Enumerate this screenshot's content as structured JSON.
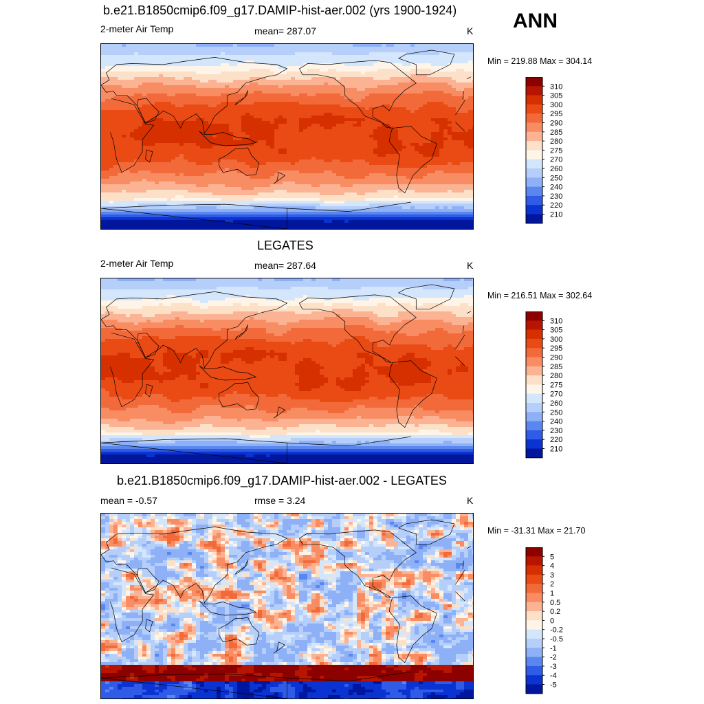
{
  "season": "ANN",
  "panels": [
    {
      "title": "b.e21.B1850cmip6.f09_g17.DAMIP-hist-aer.002 (yrs 1900-1924)",
      "left_label": "2-meter Air Temp",
      "center_label": "mean= 287.07",
      "units": "K",
      "minmax": "Min = 219.88 Max = 304.14",
      "kind": "temp",
      "legend_labels": [
        "310",
        "305",
        "300",
        "295",
        "290",
        "285",
        "280",
        "275",
        "270",
        "260",
        "250",
        "240",
        "230",
        "220",
        "210"
      ],
      "legend_colors": [
        "#8c0000",
        "#b81500",
        "#d63000",
        "#ea4a14",
        "#f26a3a",
        "#f88c62",
        "#fbb394",
        "#fde0c8",
        "#fff4e8",
        "#d4e6fb",
        "#b6cffa",
        "#8db0f6",
        "#5a87ef",
        "#2f5be6",
        "#0a33d2",
        "#00169c"
      ]
    },
    {
      "title": "LEGATES",
      "left_label": "2-meter Air Temp",
      "center_label": "mean= 287.64",
      "units": "K",
      "minmax": "Min = 216.51 Max = 302.64",
      "kind": "temp",
      "legend_labels": [
        "310",
        "305",
        "300",
        "295",
        "290",
        "285",
        "280",
        "275",
        "270",
        "260",
        "250",
        "240",
        "230",
        "220",
        "210"
      ],
      "legend_colors": [
        "#8c0000",
        "#b81500",
        "#d63000",
        "#ea4a14",
        "#f26a3a",
        "#f88c62",
        "#fbb394",
        "#fde0c8",
        "#fff4e8",
        "#d4e6fb",
        "#b6cffa",
        "#8db0f6",
        "#5a87ef",
        "#2f5be6",
        "#0a33d2",
        "#00169c"
      ]
    },
    {
      "title": "b.e21.B1850cmip6.f09_g17.DAMIP-hist-aer.002 - LEGATES",
      "left_label": "mean =  -0.57",
      "center_label": "rmse =   3.24",
      "units": "K",
      "minmax": "Min = -31.31 Max =  21.70",
      "kind": "diff",
      "legend_labels": [
        "5",
        "4",
        "3",
        "2",
        "1",
        "0.5",
        "0.2",
        "0",
        "-0.2",
        "-0.5",
        "-1",
        "-2",
        "-3",
        "-4",
        "-5"
      ],
      "legend_colors": [
        "#8c0000",
        "#b81500",
        "#d63000",
        "#ea4a14",
        "#f26a3a",
        "#f88c62",
        "#fbb394",
        "#fde0c8",
        "#fff4e8",
        "#d4e6fb",
        "#b6cffa",
        "#8db0f6",
        "#5a87ef",
        "#2f5be6",
        "#0a33d2",
        "#00169c"
      ]
    }
  ]
}
